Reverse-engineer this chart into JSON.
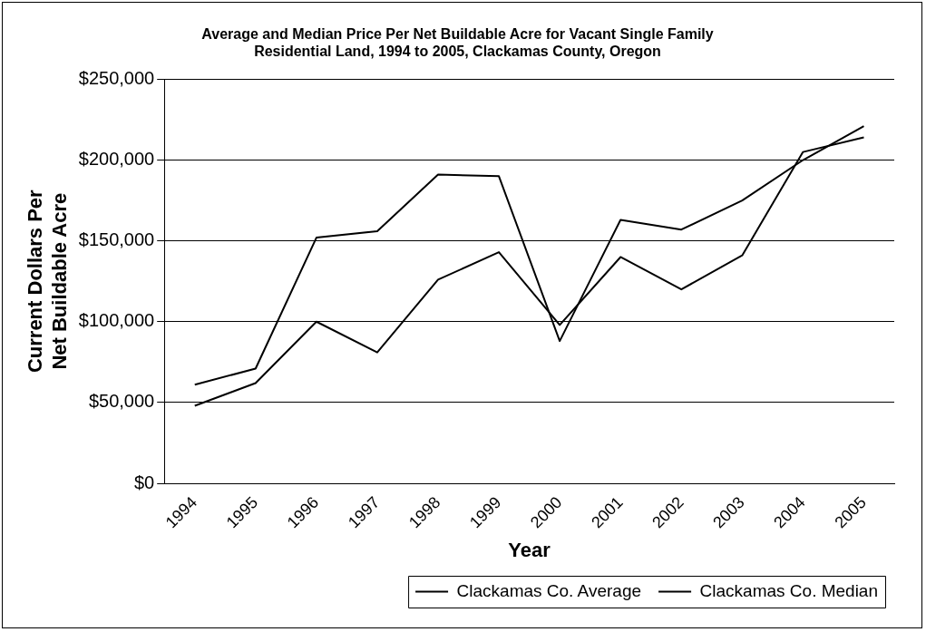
{
  "chart_data": {
    "type": "line",
    "title": "Average and Median Price Per Net Buildable Acre for Vacant Single Family Residential Land, 1994 to 2005, Clackamas County, Oregon",
    "xlabel": "Year",
    "ylabel": "Current Dollars Per Net Buildable Acre",
    "categories": [
      "1994",
      "1995",
      "1996",
      "1997",
      "1998",
      "1999",
      "2000",
      "2001",
      "2002",
      "2003",
      "2004",
      "2005"
    ],
    "series": [
      {
        "name": "Clackamas Co. Average",
        "color": "#000000",
        "values": [
          61000,
          71000,
          152000,
          156000,
          191000,
          190000,
          88000,
          163000,
          157000,
          175000,
          200000,
          221000
        ]
      },
      {
        "name": "Clackamas Co. Median",
        "color": "#000000",
        "values": [
          48000,
          62000,
          100000,
          81000,
          126000,
          143000,
          98000,
          140000,
          120000,
          141000,
          205000,
          214000
        ]
      }
    ],
    "ylim": [
      0,
      250000
    ],
    "yticks": [
      {
        "value": 0,
        "label": "$0"
      },
      {
        "value": 50000,
        "label": "$50,000"
      },
      {
        "value": 100000,
        "label": "$100,000"
      },
      {
        "value": 150000,
        "label": "$150,000"
      },
      {
        "value": 200000,
        "label": "$200,000"
      },
      {
        "value": 250000,
        "label": "$250,000"
      }
    ],
    "grid": "y",
    "legend": "bottom",
    "marker": "none",
    "line_style": "solid"
  }
}
